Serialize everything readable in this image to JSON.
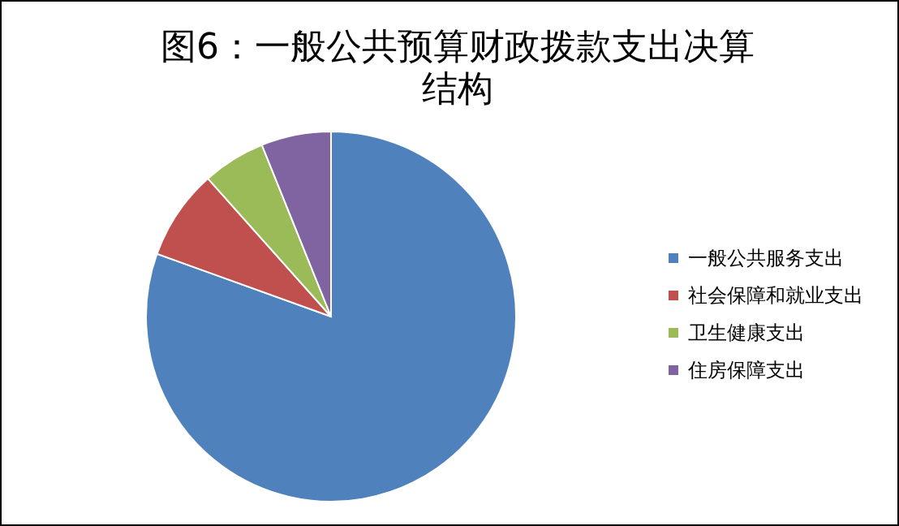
{
  "chart_data": {
    "type": "pie",
    "title": "图6：一般公共预算财政拨款支出决算结构",
    "categories": [
      "一般公共服务支出",
      "社会保障和就业支出",
      "卫生健康支出",
      "住房保障支出"
    ],
    "values": [
      80.5,
      7.9,
      5.5,
      6.1
    ],
    "colors": [
      "#4f81bd",
      "#c0504d",
      "#9bbb59",
      "#8064a2"
    ],
    "legend": "right"
  }
}
